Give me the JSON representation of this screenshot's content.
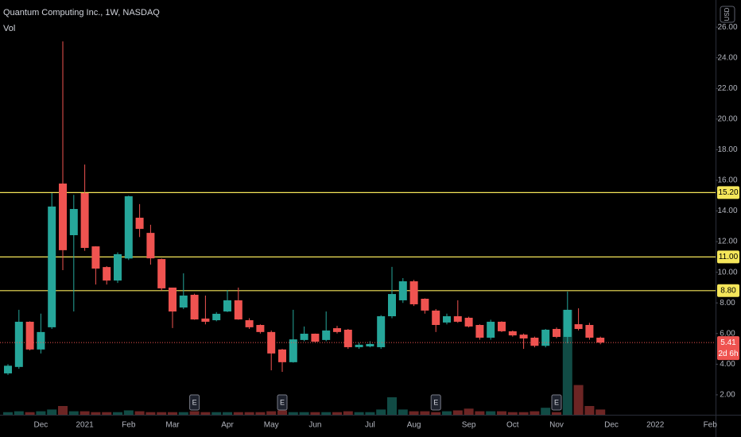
{
  "chart_data": {
    "type": "candlestick",
    "title": "Quantum Computing Inc., 1W, NASDAQ",
    "volume_label": "Vol",
    "currency": "USD",
    "categories": [
      null,
      null,
      null,
      "Dec",
      null,
      null,
      null,
      "2021",
      null,
      null,
      null,
      "Feb",
      null,
      null,
      null,
      "Mar",
      null,
      null,
      null,
      null,
      "Apr",
      null,
      null,
      null,
      "May",
      null,
      null,
      null,
      "Jun",
      null,
      null,
      null,
      null,
      "Jul",
      null,
      null,
      null,
      "Aug",
      null,
      null,
      null,
      null,
      "Sep",
      null,
      null,
      null,
      "Oct",
      null,
      null,
      null,
      "Nov",
      null,
      null,
      null,
      null,
      "Dec",
      null,
      null,
      null,
      "2022",
      null,
      null,
      null,
      null,
      "Feb"
    ],
    "open": [
      3.4,
      3.82,
      6.77,
      4.96,
      6.41,
      15.79,
      12.42,
      15.17,
      11.69,
      10.34,
      9.46,
      10.9,
      13.56,
      12.57,
      10.86,
      9.0,
      7.7,
      8.53,
      6.98,
      6.87,
      7.44,
      8.17,
      6.87,
      6.56,
      6.1,
      4.96,
      4.13,
      5.58,
      5.99,
      5.58,
      6.35,
      6.25,
      5.11,
      5.16,
      5.11,
      7.13,
      8.17,
      9.41,
      8.27,
      7.5,
      6.72,
      7.13,
      7.03,
      6.56,
      5.73,
      6.77,
      6.15,
      5.93,
      5.73,
      5.2,
      6.3,
      5.78,
      6.61,
      6.56,
      5.73,
      null,
      null,
      null,
      null,
      null,
      null,
      null,
      null,
      null,
      null
    ],
    "high": [
      4.0,
      7.55,
      6.8,
      7.3,
      15.17,
      25.07,
      15.05,
      17.03,
      11.7,
      10.4,
      11.3,
      15.0,
      14.45,
      13.1,
      10.9,
      9.0,
      9.93,
      8.6,
      8.48,
      7.4,
      8.84,
      9.0,
      7.0,
      6.6,
      6.2,
      5.0,
      7.55,
      6.46,
      6.0,
      7.44,
      6.5,
      6.3,
      5.4,
      5.5,
      7.2,
      10.35,
      9.62,
      9.5,
      8.3,
      7.6,
      7.3,
      8.17,
      7.1,
      6.6,
      6.9,
      6.8,
      6.2,
      6.0,
      5.8,
      6.3,
      6.4,
      8.74,
      7.65,
      6.7,
      5.8,
      null,
      null,
      null,
      null,
      null,
      null,
      null,
      null,
      null,
      null
    ],
    "low": [
      3.3,
      3.7,
      4.9,
      4.7,
      6.3,
      10.14,
      7.44,
      11.4,
      9.2,
      9.2,
      9.3,
      10.8,
      12.3,
      10.5,
      8.8,
      6.36,
      7.6,
      6.9,
      6.6,
      6.8,
      7.4,
      6.9,
      6.3,
      6.0,
      3.6,
      3.5,
      4.1,
      5.5,
      5.4,
      5.5,
      6.0,
      5.0,
      5.0,
      5.1,
      5.0,
      7.0,
      8.0,
      7.8,
      7.3,
      6.1,
      6.6,
      6.7,
      6.4,
      5.6,
      5.6,
      6.1,
      5.8,
      5.0,
      5.1,
      5.1,
      5.7,
      5.37,
      6.2,
      5.6,
      5.3,
      null,
      null,
      null,
      null,
      null,
      null,
      null,
      null,
      null,
      null
    ],
    "close": [
      3.9,
      6.77,
      4.96,
      6.1,
      14.29,
      11.44,
      14.13,
      11.59,
      10.24,
      9.46,
      11.18,
      14.96,
      12.83,
      10.91,
      8.95,
      7.44,
      8.48,
      6.92,
      6.77,
      7.29,
      8.17,
      6.92,
      6.41,
      6.1,
      4.7,
      4.13,
      5.62,
      5.99,
      5.47,
      6.2,
      6.1,
      5.11,
      5.27,
      5.32,
      7.13,
      8.58,
      9.41,
      7.91,
      7.5,
      6.56,
      7.13,
      6.77,
      6.46,
      5.73,
      6.77,
      6.15,
      5.88,
      5.68,
      5.2,
      6.25,
      5.78,
      7.55,
      6.3,
      5.73,
      5.41,
      null,
      null,
      null,
      null,
      null,
      null,
      null,
      null,
      null,
      null
    ],
    "volume": [
      1.5,
      2,
      1.5,
      2,
      3,
      5,
      2,
      2,
      1.5,
      1.5,
      1.5,
      2.5,
      2,
      1.5,
      1.5,
      1.5,
      1.5,
      2,
      1.5,
      1.5,
      1.5,
      1.5,
      1.5,
      1.5,
      2,
      2.5,
      1.5,
      1.5,
      1.5,
      1.5,
      1.5,
      2,
      1.5,
      1.5,
      3,
      10,
      3,
      2,
      2,
      1.5,
      2,
      2.5,
      3.5,
      2,
      2,
      2,
      1.5,
      1.5,
      2,
      4,
      1.5,
      60,
      17,
      5,
      3,
      null,
      null,
      null,
      null,
      null,
      null,
      null,
      null,
      null,
      null
    ],
    "up_color": "#26a69a",
    "down_color": "#ef5350",
    "ylim": [
      0.7,
      27.77
    ],
    "yticks": [
      {
        "value": 2,
        "label": "2.00"
      },
      {
        "value": 4,
        "label": "4.00"
      },
      {
        "value": 6,
        "label": "6.00"
      },
      {
        "value": 8,
        "label": "8.00"
      },
      {
        "value": 10,
        "label": "10.00"
      },
      {
        "value": 12,
        "label": "12.00"
      },
      {
        "value": 14,
        "label": "14.00"
      },
      {
        "value": 16,
        "label": "16.00"
      },
      {
        "value": 18,
        "label": "18.00"
      },
      {
        "value": 20,
        "label": "20.00"
      },
      {
        "value": 22,
        "label": "22.00"
      },
      {
        "value": 24,
        "label": "24.00"
      },
      {
        "value": 26,
        "label": "26.00"
      }
    ],
    "hlines": [
      {
        "value": 15.2,
        "label": "15.20"
      },
      {
        "value": 11,
        "label": "11.00"
      },
      {
        "value": 8.8,
        "label": "8.80"
      }
    ],
    "hline_color": "#f5e65a",
    "last_price": {
      "value": 5.41,
      "label": "5.41"
    },
    "countdown": "2d 6h",
    "earnings_markers": [
      {
        "category": 17,
        "label": "E"
      },
      {
        "category": 25,
        "label": "E"
      },
      {
        "category": 39,
        "label": "E"
      },
      {
        "category": 50,
        "label": "E"
      }
    ]
  }
}
